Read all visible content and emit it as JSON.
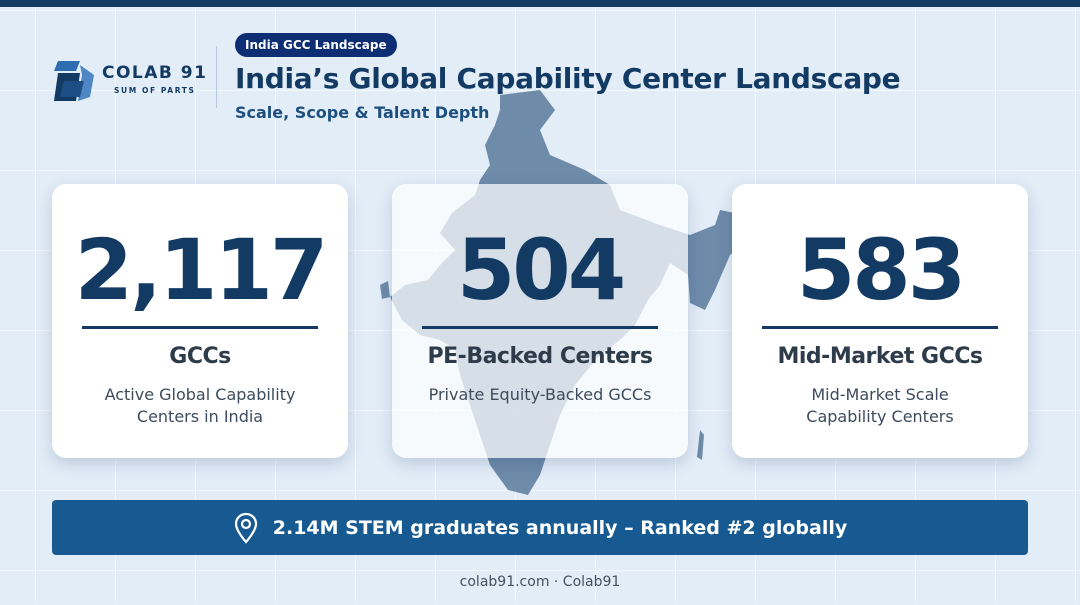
{
  "brand": {
    "name": "COLAB 91",
    "tagline": "SUM OF PARTS",
    "logo_icon": "cube-logo-icon"
  },
  "header": {
    "pill": "India GCC Landscape",
    "title": "India’s Global Capability Center Landscape",
    "subtitle": "Scale, Scope & Talent Depth"
  },
  "stats": [
    {
      "value": "2,117",
      "label": "GCCs",
      "description": "Active Global Capability Centers in India"
    },
    {
      "value": "504",
      "label": "PE-Backed Centers",
      "description": "Private Equity-Backed GCCs"
    },
    {
      "value": "583",
      "label": "Mid-Market GCCs",
      "description": "Mid-Market Scale Capability Centers"
    }
  ],
  "banner": {
    "icon": "map-pin-icon",
    "text": "2.14M STEM graduates annually – Ranked #2 globally"
  },
  "footer": "colab91.com · Colab91",
  "colors": {
    "background": "#e3edf8",
    "navy": "#123a63",
    "pill": "#0e2e73",
    "banner": "#175a91",
    "map": "#5d7d9e"
  }
}
